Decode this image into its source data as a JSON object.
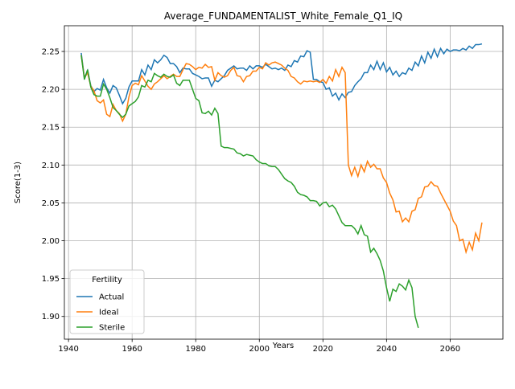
{
  "chart_data": {
    "type": "line",
    "title": "Average_FUNDAMENTALIST_White_Female_Q1_IQ",
    "x_label": "Years",
    "y_label": "Score(1-3)",
    "x": [
      1944,
      1945,
      1946,
      1947,
      1948,
      1949,
      1950,
      1951,
      1952,
      1953,
      1954,
      1955,
      1956,
      1957,
      1958,
      1959,
      1960,
      1961,
      1962,
      1963,
      1964,
      1965,
      1966,
      1967,
      1968,
      1969,
      1970,
      1971,
      1972,
      1973,
      1974,
      1975,
      1976,
      1977,
      1978,
      1979,
      1980,
      1981,
      1982,
      1983,
      1984,
      1985,
      1986,
      1987,
      1988,
      1989,
      1990,
      1991,
      1992,
      1993,
      1994,
      1995,
      1996,
      1997,
      1998,
      1999,
      2000,
      2001,
      2002,
      2003,
      2004,
      2005,
      2006,
      2007,
      2008,
      2009,
      2010,
      2011,
      2012,
      2013,
      2014,
      2015,
      2016,
      2017,
      2018,
      2019,
      2020,
      2021,
      2022,
      2023,
      2024,
      2025,
      2026,
      2027,
      2028,
      2029,
      2030,
      2031,
      2032,
      2033,
      2034,
      2035,
      2036,
      2037,
      2038,
      2039,
      2040,
      2041,
      2042,
      2043,
      2044,
      2045,
      2046,
      2047,
      2048,
      2049,
      2050,
      2051,
      2052,
      2053,
      2054,
      2055,
      2056,
      2057,
      2058,
      2059,
      2060,
      2061,
      2062,
      2063,
      2064,
      2065,
      2066,
      2067,
      2068,
      2069,
      2070
    ],
    "series": [
      {
        "name": "Actual",
        "color": "#1f77b4",
        "values": [
          2.248,
          2.215,
          2.225,
          2.205,
          2.197,
          2.201,
          2.199,
          2.213,
          2.202,
          2.195,
          2.205,
          2.202,
          2.192,
          2.181,
          2.188,
          2.203,
          2.211,
          2.211,
          2.211,
          2.226,
          2.219,
          2.232,
          2.226,
          2.239,
          2.235,
          2.239,
          2.245,
          2.242,
          2.234,
          2.234,
          2.23,
          2.222,
          2.228,
          2.227,
          2.227,
          2.221,
          2.219,
          2.217,
          2.214,
          2.215,
          2.215,
          2.204,
          2.212,
          2.21,
          2.214,
          2.218,
          2.225,
          2.228,
          2.231,
          2.227,
          2.228,
          2.228,
          2.225,
          2.231,
          2.227,
          2.231,
          2.231,
          2.229,
          2.233,
          2.23,
          2.227,
          2.228,
          2.226,
          2.228,
          2.225,
          2.232,
          2.23,
          2.238,
          2.236,
          2.244,
          2.243,
          2.251,
          2.249,
          2.213,
          2.213,
          2.21,
          2.209,
          2.2,
          2.202,
          2.191,
          2.195,
          2.186,
          2.194,
          2.189,
          2.196,
          2.197,
          2.205,
          2.21,
          2.214,
          2.222,
          2.222,
          2.232,
          2.226,
          2.237,
          2.226,
          2.235,
          2.223,
          2.229,
          2.219,
          2.224,
          2.217,
          2.222,
          2.22,
          2.228,
          2.225,
          2.236,
          2.231,
          2.244,
          2.235,
          2.249,
          2.241,
          2.253,
          2.243,
          2.254,
          2.247,
          2.253,
          2.25,
          2.252,
          2.252,
          2.251,
          2.254,
          2.252,
          2.257,
          2.254,
          2.259,
          2.259,
          2.26
        ]
      },
      {
        "name": "Ideal",
        "color": "#ff7f0e",
        "values": [
          2.245,
          2.215,
          2.222,
          2.204,
          2.198,
          2.185,
          2.182,
          2.186,
          2.167,
          2.164,
          2.18,
          2.172,
          2.168,
          2.158,
          2.167,
          2.19,
          2.205,
          2.208,
          2.206,
          2.218,
          2.211,
          2.204,
          2.2,
          2.207,
          2.21,
          2.214,
          2.218,
          2.214,
          2.217,
          2.22,
          2.217,
          2.217,
          2.226,
          2.234,
          2.233,
          2.23,
          2.226,
          2.229,
          2.228,
          2.233,
          2.229,
          2.23,
          2.212,
          2.222,
          2.218,
          2.216,
          2.218,
          2.225,
          2.229,
          2.218,
          2.217,
          2.21,
          2.217,
          2.218,
          2.224,
          2.224,
          2.229,
          2.227,
          2.235,
          2.232,
          2.235,
          2.236,
          2.234,
          2.232,
          2.228,
          2.225,
          2.217,
          2.215,
          2.21,
          2.207,
          2.211,
          2.21,
          2.211,
          2.21,
          2.211,
          2.209,
          2.213,
          2.208,
          2.217,
          2.211,
          2.226,
          2.217,
          2.229,
          2.222,
          2.1,
          2.086,
          2.097,
          2.085,
          2.1,
          2.091,
          2.105,
          2.097,
          2.101,
          2.095,
          2.095,
          2.083,
          2.077,
          2.063,
          2.054,
          2.038,
          2.039,
          2.025,
          2.03,
          2.025,
          2.039,
          2.041,
          2.056,
          2.058,
          2.071,
          2.072,
          2.078,
          2.073,
          2.072,
          2.063,
          2.055,
          2.047,
          2.039,
          2.026,
          2.02,
          2.0,
          2.002,
          1.985,
          1.998,
          1.988,
          2.01,
          2.0,
          2.024
        ]
      },
      {
        "name": "Sterile",
        "color": "#2ca02c",
        "values": [
          2.245,
          2.213,
          2.226,
          2.203,
          2.193,
          2.191,
          2.191,
          2.207,
          2.2,
          2.189,
          2.176,
          2.172,
          2.167,
          2.163,
          2.167,
          2.178,
          2.181,
          2.184,
          2.19,
          2.205,
          2.203,
          2.212,
          2.21,
          2.221,
          2.218,
          2.216,
          2.22,
          2.217,
          2.216,
          2.219,
          2.208,
          2.205,
          2.212,
          2.212,
          2.212,
          2.2,
          2.188,
          2.185,
          2.169,
          2.168,
          2.171,
          2.166,
          2.175,
          2.168,
          2.125,
          2.123,
          2.123,
          2.122,
          2.121,
          2.116,
          2.115,
          2.112,
          2.114,
          2.113,
          2.112,
          2.107,
          2.104,
          2.102,
          2.102,
          2.099,
          2.098,
          2.098,
          2.094,
          2.088,
          2.082,
          2.079,
          2.077,
          2.072,
          2.064,
          2.061,
          2.06,
          2.058,
          2.053,
          2.053,
          2.052,
          2.046,
          2.05,
          2.051,
          2.045,
          2.047,
          2.042,
          2.033,
          2.024,
          2.02,
          2.02,
          2.02,
          2.016,
          2.009,
          2.02,
          2.008,
          2.006,
          1.985,
          1.99,
          1.983,
          1.974,
          1.96,
          1.938,
          1.92,
          1.936,
          1.933,
          1.943,
          1.94,
          1.935,
          1.948,
          1.938,
          1.9,
          1.885,
          null,
          null,
          null,
          null,
          null,
          null,
          null,
          null,
          null,
          null,
          null,
          null,
          null,
          null,
          null,
          null,
          null,
          null,
          null,
          null
        ]
      }
    ],
    "xlim": [
      1938.7,
      2076.6
    ],
    "xticks": [
      1940,
      1960,
      1980,
      2000,
      2020,
      2040,
      2060
    ],
    "ylim": [
      1.87,
      2.284
    ],
    "yticks": [
      {
        "value": 1.9,
        "label": "1.90"
      },
      1.95,
      {
        "value": 2.0,
        "label": "2.00"
      },
      2.05,
      {
        "value": 2.1,
        "label": "2.10"
      },
      2.15,
      {
        "value": 2.2,
        "label": "2.20"
      },
      2.25
    ],
    "grid": true,
    "legend_title": "Fertility",
    "legend_position": "lower left"
  }
}
